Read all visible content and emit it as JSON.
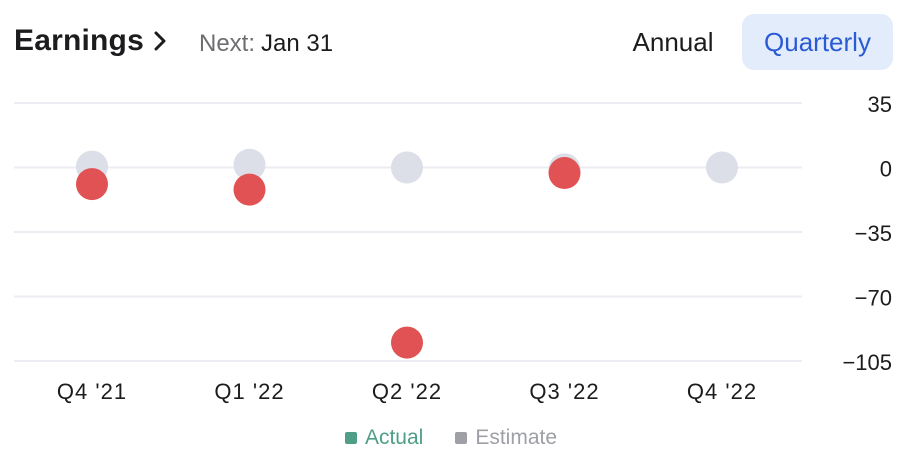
{
  "header": {
    "title": "Earnings",
    "next_label": "Next:",
    "next_value": "Jan 31",
    "toggle_annual": "Annual",
    "toggle_quarterly": "Quarterly",
    "selected_period": "Quarterly"
  },
  "colors": {
    "actual_point": "#e05253",
    "estimate_point": "#dcdee8",
    "actual_legend": "#4f9e87",
    "estimate_legend": "#9ea0a6",
    "grid": "#ececf3",
    "accent": "#2a5ad4",
    "toggle_selected_bg": "#e3ecfa"
  },
  "chart_data": {
    "type": "scatter",
    "categories": [
      "Q4 '21",
      "Q1 '22",
      "Q2 '22",
      "Q3 '22",
      "Q4 '22"
    ],
    "series": [
      {
        "name": "Actual",
        "values": [
          -9,
          -12,
          -95,
          -3,
          null
        ]
      },
      {
        "name": "Estimate",
        "values": [
          0.5,
          1.5,
          0,
          -1,
          0
        ]
      }
    ],
    "yticks": [
      35,
      0,
      -35,
      -70,
      -105
    ],
    "ytick_labels": [
      "35",
      "0",
      "−35",
      "−70",
      "−105"
    ],
    "ylim": [
      -105,
      35
    ],
    "grid": true,
    "legend": "bottom"
  },
  "legend": {
    "actual": "Actual",
    "estimate": "Estimate"
  }
}
